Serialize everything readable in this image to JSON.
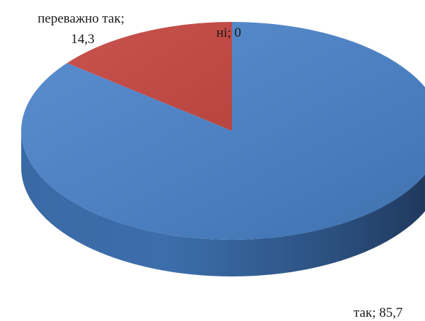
{
  "chart_data": {
    "type": "pie",
    "style": "3d",
    "slices": [
      {
        "category": "так",
        "value": 85.7,
        "label": "так; 85,7",
        "color": "#4f81bd"
      },
      {
        "category": "переважно так",
        "value": 14.3,
        "label_line1": "переважно так;",
        "label_line2": "14,3",
        "color": "#c0504d"
      },
      {
        "category": "ні",
        "value": 0,
        "label": "ні; 0",
        "color": "#9bbb59"
      }
    ],
    "legend": "none"
  }
}
